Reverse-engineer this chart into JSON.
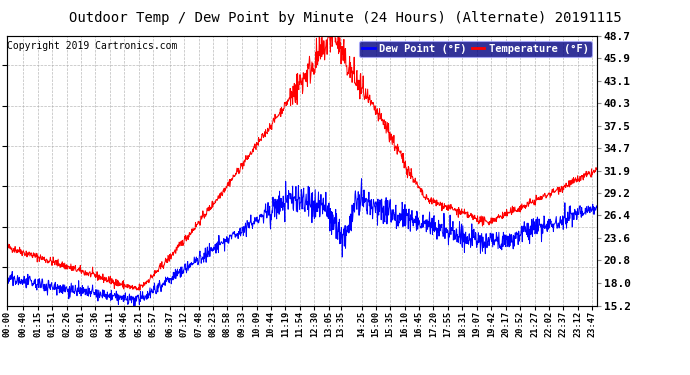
{
  "title": "Outdoor Temp / Dew Point by Minute (24 Hours) (Alternate) 20191115",
  "copyright": "Copyright 2019 Cartronics.com",
  "ylabel_right": [
    "48.7",
    "45.9",
    "43.1",
    "40.3",
    "37.5",
    "34.7",
    "31.9",
    "29.2",
    "26.4",
    "23.6",
    "20.8",
    "18.0",
    "15.2"
  ],
  "ylim": [
    15.2,
    48.7
  ],
  "legend_labels": [
    "Dew Point (°F)",
    "Temperature (°F)"
  ],
  "legend_colors": [
    "#0000ff",
    "#ff0000"
  ],
  "background_color": "#ffffff",
  "plot_bg_color": "#ffffff",
  "grid_color": "#aaaaaa",
  "title_fontsize": 10,
  "copyright_fontsize": 7,
  "tick_label_fontsize": 8,
  "n_points": 1440
}
